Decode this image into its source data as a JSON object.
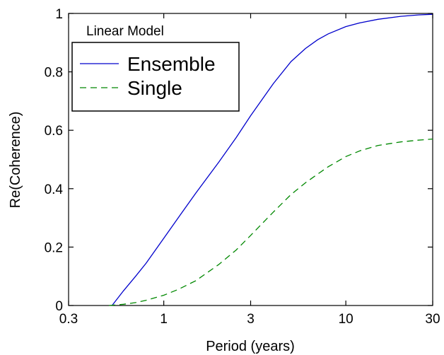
{
  "chart_data": {
    "type": "line",
    "title": "",
    "xlabel": "Period (years)",
    "ylabel": "Re(Coherence)",
    "xscale": "log",
    "xlim": [
      0.3,
      30
    ],
    "ylim": [
      0,
      1
    ],
    "x_ticks": [
      0.3,
      1,
      3,
      10,
      30
    ],
    "x_tick_labels": [
      "0.3",
      "1",
      "3",
      "10",
      "30"
    ],
    "y_ticks": [
      0,
      0.2,
      0.4,
      0.6,
      0.8,
      1
    ],
    "y_tick_labels": [
      "0",
      "0.2",
      "0.4",
      "0.6",
      "0.8",
      "1"
    ],
    "grid": false,
    "legend": {
      "title": "Linear Model",
      "placement": "top-left",
      "entries": [
        "Ensemble",
        "Single"
      ]
    },
    "series": [
      {
        "name": "Ensemble",
        "color": "#0000cc",
        "dash": "solid",
        "x": [
          0.52,
          0.6,
          0.7,
          0.8,
          0.9,
          1.0,
          1.2,
          1.5,
          2.0,
          2.5,
          3.0,
          4.0,
          5.0,
          6.0,
          7.0,
          8.0,
          10,
          12,
          15,
          20,
          25,
          30
        ],
        "y": [
          0.0,
          0.05,
          0.1,
          0.145,
          0.19,
          0.23,
          0.3,
          0.385,
          0.49,
          0.575,
          0.65,
          0.76,
          0.835,
          0.88,
          0.91,
          0.93,
          0.955,
          0.968,
          0.98,
          0.99,
          0.995,
          0.997
        ]
      },
      {
        "name": "Single",
        "color": "#008800",
        "dash": "dashed",
        "x": [
          0.5,
          0.6,
          0.7,
          0.8,
          1.0,
          1.2,
          1.5,
          2.0,
          2.5,
          3.0,
          4.0,
          5.0,
          6.0,
          7.0,
          8.0,
          10,
          12,
          15,
          20,
          25,
          30
        ],
        "y": [
          0.0,
          0.004,
          0.01,
          0.018,
          0.035,
          0.055,
          0.085,
          0.14,
          0.19,
          0.24,
          0.32,
          0.38,
          0.42,
          0.45,
          0.475,
          0.51,
          0.53,
          0.548,
          0.56,
          0.566,
          0.57
        ]
      }
    ]
  }
}
